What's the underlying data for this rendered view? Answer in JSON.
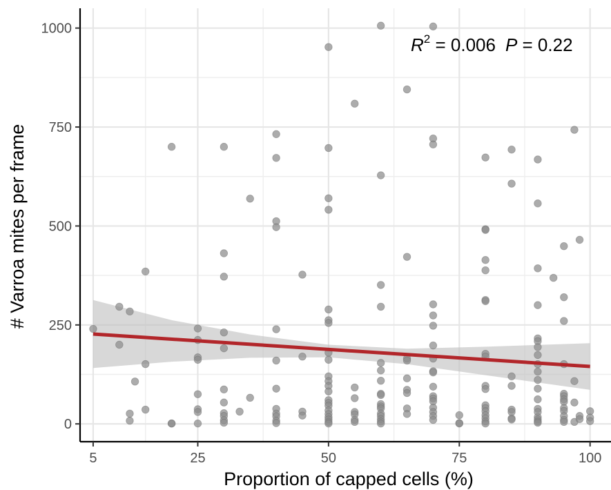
{
  "chart_data": {
    "type": "scatter",
    "xlabel": "Proportion of capped cells (%)",
    "ylabel": "# Varroa mites per frame",
    "xlim": [
      2.5,
      104
    ],
    "ylim": [
      -45,
      1050
    ],
    "x_ticks": [
      5,
      25,
      50,
      75,
      100
    ],
    "x_tick_labels": [
      "5",
      "25",
      "50",
      "75",
      "100"
    ],
    "x_minor": [
      15,
      37.5,
      62.5,
      87.5
    ],
    "y_ticks": [
      0,
      250,
      500,
      750,
      1000
    ],
    "y_tick_labels": [
      "0",
      "250",
      "500",
      "750",
      "1000"
    ],
    "y_minor": [
      125,
      375,
      625,
      875
    ],
    "grid": true,
    "colors": {
      "points": "#8c8c8c",
      "fit_line": "#b2262a",
      "ribbon": "#bebebe"
    },
    "annotation": {
      "r_symbol": "R",
      "r_exp": "2",
      "r_value": " = 0.006",
      "p_symbol": "P",
      "p_value": " = 0.22"
    },
    "fit_line": {
      "x": [
        5,
        100
      ],
      "y": [
        227,
        145
      ]
    },
    "confidence_band": {
      "x": [
        5,
        20,
        35,
        50,
        65,
        80,
        100
      ],
      "upper": [
        313,
        262,
        226,
        200,
        190,
        195,
        204
      ],
      "lower": [
        141,
        157,
        167,
        168,
        151,
        123,
        86
      ]
    },
    "points": [
      {
        "x": 5,
        "y": 240
      },
      {
        "x": 10,
        "y": 296
      },
      {
        "x": 10,
        "y": 200
      },
      {
        "x": 12,
        "y": 284
      },
      {
        "x": 12,
        "y": 26
      },
      {
        "x": 12,
        "y": 8
      },
      {
        "x": 13,
        "y": 107
      },
      {
        "x": 15,
        "y": 385
      },
      {
        "x": 15,
        "y": 151
      },
      {
        "x": 15,
        "y": 36
      },
      {
        "x": 20,
        "y": 700
      },
      {
        "x": 20,
        "y": 1
      },
      {
        "x": 20,
        "y": 1
      },
      {
        "x": 25,
        "y": 241
      },
      {
        "x": 25,
        "y": 212
      },
      {
        "x": 25,
        "y": 168
      },
      {
        "x": 25,
        "y": 162
      },
      {
        "x": 25,
        "y": 75
      },
      {
        "x": 25,
        "y": 37
      },
      {
        "x": 25,
        "y": 30
      },
      {
        "x": 25,
        "y": 1
      },
      {
        "x": 30,
        "y": 700
      },
      {
        "x": 30,
        "y": 431
      },
      {
        "x": 30,
        "y": 372
      },
      {
        "x": 30,
        "y": 231
      },
      {
        "x": 30,
        "y": 191
      },
      {
        "x": 30,
        "y": 87
      },
      {
        "x": 30,
        "y": 54
      },
      {
        "x": 30,
        "y": 27
      },
      {
        "x": 30,
        "y": 20
      },
      {
        "x": 30,
        "y": 9
      },
      {
        "x": 30,
        "y": 3
      },
      {
        "x": 33,
        "y": 31
      },
      {
        "x": 35,
        "y": 569
      },
      {
        "x": 35,
        "y": 66
      },
      {
        "x": 40,
        "y": 732
      },
      {
        "x": 40,
        "y": 672
      },
      {
        "x": 40,
        "y": 512
      },
      {
        "x": 40,
        "y": 497
      },
      {
        "x": 40,
        "y": 239
      },
      {
        "x": 40,
        "y": 160
      },
      {
        "x": 40,
        "y": 89
      },
      {
        "x": 40,
        "y": 38
      },
      {
        "x": 40,
        "y": 26
      },
      {
        "x": 40,
        "y": 19
      },
      {
        "x": 40,
        "y": 8
      },
      {
        "x": 40,
        "y": 2
      },
      {
        "x": 45,
        "y": 377
      },
      {
        "x": 45,
        "y": 170
      },
      {
        "x": 45,
        "y": 31
      },
      {
        "x": 45,
        "y": 21
      },
      {
        "x": 50,
        "y": 952
      },
      {
        "x": 50,
        "y": 697
      },
      {
        "x": 50,
        "y": 570
      },
      {
        "x": 50,
        "y": 541
      },
      {
        "x": 50,
        "y": 289
      },
      {
        "x": 50,
        "y": 262
      },
      {
        "x": 50,
        "y": 255
      },
      {
        "x": 50,
        "y": 180
      },
      {
        "x": 50,
        "y": 162
      },
      {
        "x": 50,
        "y": 120
      },
      {
        "x": 50,
        "y": 108
      },
      {
        "x": 50,
        "y": 96
      },
      {
        "x": 50,
        "y": 82
      },
      {
        "x": 50,
        "y": 60
      },
      {
        "x": 50,
        "y": 53
      },
      {
        "x": 50,
        "y": 46
      },
      {
        "x": 50,
        "y": 34
      },
      {
        "x": 50,
        "y": 25
      },
      {
        "x": 50,
        "y": 17
      },
      {
        "x": 50,
        "y": 11
      },
      {
        "x": 50,
        "y": 5
      },
      {
        "x": 50,
        "y": 1
      },
      {
        "x": 55,
        "y": 809
      },
      {
        "x": 55,
        "y": 92
      },
      {
        "x": 55,
        "y": 65
      },
      {
        "x": 55,
        "y": 30
      },
      {
        "x": 55,
        "y": 24
      },
      {
        "x": 55,
        "y": 10
      },
      {
        "x": 55,
        "y": 5
      },
      {
        "x": 60,
        "y": 1006
      },
      {
        "x": 60,
        "y": 628
      },
      {
        "x": 60,
        "y": 351
      },
      {
        "x": 60,
        "y": 296
      },
      {
        "x": 60,
        "y": 154
      },
      {
        "x": 60,
        "y": 135
      },
      {
        "x": 60,
        "y": 109
      },
      {
        "x": 60,
        "y": 76
      },
      {
        "x": 60,
        "y": 73
      },
      {
        "x": 60,
        "y": 50
      },
      {
        "x": 60,
        "y": 44
      },
      {
        "x": 60,
        "y": 39
      },
      {
        "x": 60,
        "y": 26
      },
      {
        "x": 60,
        "y": 20
      },
      {
        "x": 60,
        "y": 12
      },
      {
        "x": 60,
        "y": 6
      },
      {
        "x": 60,
        "y": 1
      },
      {
        "x": 65,
        "y": 845
      },
      {
        "x": 65,
        "y": 422
      },
      {
        "x": 65,
        "y": 165
      },
      {
        "x": 65,
        "y": 160
      },
      {
        "x": 65,
        "y": 115
      },
      {
        "x": 65,
        "y": 86
      },
      {
        "x": 65,
        "y": 78
      },
      {
        "x": 65,
        "y": 39
      },
      {
        "x": 65,
        "y": 25
      },
      {
        "x": 70,
        "y": 1004
      },
      {
        "x": 70,
        "y": 721
      },
      {
        "x": 70,
        "y": 706
      },
      {
        "x": 70,
        "y": 302
      },
      {
        "x": 70,
        "y": 274
      },
      {
        "x": 70,
        "y": 248
      },
      {
        "x": 70,
        "y": 198
      },
      {
        "x": 70,
        "y": 165
      },
      {
        "x": 70,
        "y": 133
      },
      {
        "x": 70,
        "y": 130
      },
      {
        "x": 70,
        "y": 94
      },
      {
        "x": 70,
        "y": 70
      },
      {
        "x": 70,
        "y": 64
      },
      {
        "x": 70,
        "y": 57
      },
      {
        "x": 70,
        "y": 41
      },
      {
        "x": 70,
        "y": 30
      },
      {
        "x": 70,
        "y": 20
      },
      {
        "x": 70,
        "y": 10
      },
      {
        "x": 75,
        "y": 22
      },
      {
        "x": 75,
        "y": 2
      },
      {
        "x": 75,
        "y": 1
      },
      {
        "x": 80,
        "y": 673
      },
      {
        "x": 80,
        "y": 492
      },
      {
        "x": 80,
        "y": 490
      },
      {
        "x": 80,
        "y": 414
      },
      {
        "x": 80,
        "y": 388
      },
      {
        "x": 80,
        "y": 313
      },
      {
        "x": 80,
        "y": 310
      },
      {
        "x": 80,
        "y": 177
      },
      {
        "x": 80,
        "y": 170
      },
      {
        "x": 80,
        "y": 96
      },
      {
        "x": 80,
        "y": 88
      },
      {
        "x": 80,
        "y": 47
      },
      {
        "x": 80,
        "y": 40
      },
      {
        "x": 80,
        "y": 32
      },
      {
        "x": 80,
        "y": 22
      },
      {
        "x": 80,
        "y": 14
      },
      {
        "x": 80,
        "y": 6
      },
      {
        "x": 80,
        "y": 1
      },
      {
        "x": 85,
        "y": 693
      },
      {
        "x": 85,
        "y": 607
      },
      {
        "x": 85,
        "y": 120
      },
      {
        "x": 85,
        "y": 96
      },
      {
        "x": 85,
        "y": 36
      },
      {
        "x": 85,
        "y": 30
      },
      {
        "x": 85,
        "y": 14
      },
      {
        "x": 85,
        "y": 11
      },
      {
        "x": 90,
        "y": 668
      },
      {
        "x": 90,
        "y": 557
      },
      {
        "x": 90,
        "y": 393
      },
      {
        "x": 90,
        "y": 300
      },
      {
        "x": 90,
        "y": 216
      },
      {
        "x": 90,
        "y": 209
      },
      {
        "x": 90,
        "y": 194
      },
      {
        "x": 90,
        "y": 174
      },
      {
        "x": 90,
        "y": 151
      },
      {
        "x": 90,
        "y": 132
      },
      {
        "x": 90,
        "y": 111
      },
      {
        "x": 90,
        "y": 89
      },
      {
        "x": 90,
        "y": 62
      },
      {
        "x": 90,
        "y": 38
      },
      {
        "x": 90,
        "y": 30
      },
      {
        "x": 90,
        "y": 17
      },
      {
        "x": 90,
        "y": 11
      },
      {
        "x": 90,
        "y": 6
      },
      {
        "x": 90,
        "y": 3
      },
      {
        "x": 93,
        "y": 369
      },
      {
        "x": 95,
        "y": 449
      },
      {
        "x": 95,
        "y": 320
      },
      {
        "x": 95,
        "y": 260
      },
      {
        "x": 95,
        "y": 151
      },
      {
        "x": 95,
        "y": 76
      },
      {
        "x": 95,
        "y": 70
      },
      {
        "x": 95,
        "y": 62
      },
      {
        "x": 95,
        "y": 56
      },
      {
        "x": 95,
        "y": 40
      },
      {
        "x": 95,
        "y": 33
      },
      {
        "x": 95,
        "y": 20
      },
      {
        "x": 95,
        "y": 10
      },
      {
        "x": 95,
        "y": 5
      },
      {
        "x": 97,
        "y": 743
      },
      {
        "x": 97,
        "y": 108
      },
      {
        "x": 97,
        "y": 54
      },
      {
        "x": 97,
        "y": 5
      },
      {
        "x": 98,
        "y": 465
      },
      {
        "x": 98,
        "y": 20
      },
      {
        "x": 98,
        "y": 12
      },
      {
        "x": 100,
        "y": 32
      },
      {
        "x": 100,
        "y": 16
      },
      {
        "x": 100,
        "y": 7
      }
    ]
  }
}
